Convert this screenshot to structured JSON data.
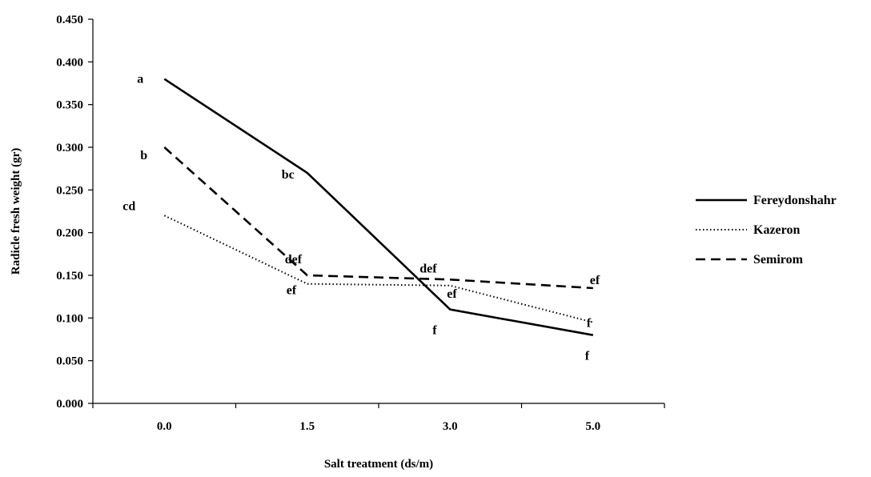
{
  "chart_data": {
    "type": "line",
    "title": "",
    "xlabel": "Salt treatment (ds/m)",
    "ylabel": "Radicle fresh weight (gr)",
    "categories": [
      "0.0",
      "1.5",
      "3.0",
      "5.0"
    ],
    "ylim": [
      0,
      0.45
    ],
    "yticks": [
      "0.000",
      "0.050",
      "0.100",
      "0.150",
      "0.200",
      "0.250",
      "0.300",
      "0.350",
      "0.400",
      "0.450"
    ],
    "grid": false,
    "legend_position": "right",
    "series": [
      {
        "name": "Fereydonshahr",
        "style": "solid",
        "color": "#000000",
        "values": [
          0.38,
          0.27,
          0.11,
          0.08
        ],
        "labels": [
          "a",
          "bc",
          "f",
          "f"
        ]
      },
      {
        "name": "Kazeron",
        "style": "dotted",
        "color": "#000000",
        "values": [
          0.22,
          0.14,
          0.138,
          0.095
        ],
        "labels": [
          "cd",
          "ef",
          "ef",
          "f"
        ]
      },
      {
        "name": "Semirom",
        "style": "dashed",
        "color": "#000000",
        "values": [
          0.3,
          0.15,
          0.145,
          0.135
        ],
        "labels": [
          "b",
          "def",
          "def",
          "ef"
        ]
      }
    ]
  }
}
